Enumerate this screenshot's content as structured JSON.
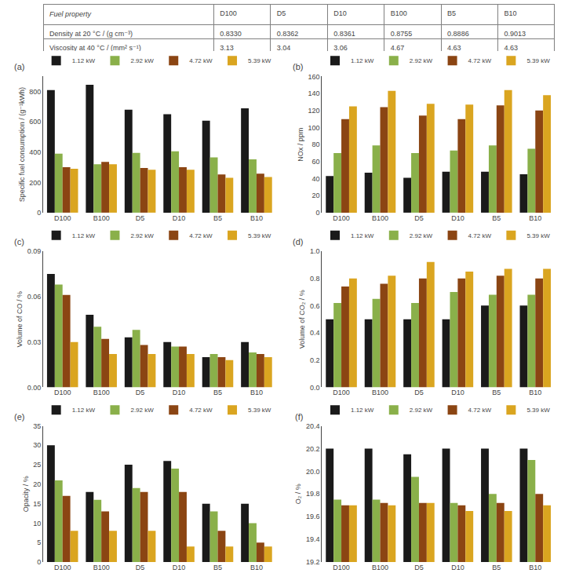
{
  "chart_data": [
    {
      "type": "table",
      "header": [
        "Fuel property",
        "D100",
        "D5",
        "D10",
        "B100",
        "B5",
        "B10"
      ],
      "rows": [
        [
          "Density at 20 °C / (g cm⁻³)",
          "0.8330",
          "0.8362",
          "0.8361",
          "0.8755",
          "0.8886",
          "0.9013"
        ],
        [
          "Viscosity at 40 °C / (mm² s⁻¹)",
          "3.13",
          "3.04",
          "3.06",
          "4.67",
          "4.63",
          "4.63"
        ]
      ]
    },
    {
      "type": "bar",
      "title": "(a)",
      "ylabel": "Specific fuel consumption / (g⁻¹kWh)",
      "categories": [
        "D100",
        "B100",
        "D5",
        "D10",
        "B5",
        "B10"
      ],
      "series": [
        {
          "name": "1.12 kW",
          "color": "#1a1a1a",
          "values": [
            810,
            845,
            680,
            650,
            608,
            690
          ]
        },
        {
          "name": "2.92 kW",
          "color": "#8ab04a",
          "values": [
            390,
            320,
            395,
            405,
            365,
            352
          ]
        },
        {
          "name": "4.72 kW",
          "color": "#8B4513",
          "values": [
            300,
            335,
            295,
            300,
            252,
            258
          ]
        },
        {
          "name": "5.39 kW",
          "color": "#DAA520",
          "values": [
            290,
            320,
            283,
            283,
            230,
            235
          ]
        }
      ],
      "ylim": [
        0,
        900
      ],
      "yticks": [
        0,
        200,
        400,
        600,
        800
      ],
      "grid": false,
      "legend": "upper right"
    },
    {
      "type": "bar",
      "title": "(b)",
      "ylabel": "NOx / ppm",
      "categories": [
        "D100",
        "B100",
        "D5",
        "D10",
        "B5",
        "B10"
      ],
      "series": [
        {
          "name": "1.12 kW",
          "color": "#1a1a1a",
          "values": [
            43,
            47,
            41,
            48,
            48,
            45
          ]
        },
        {
          "name": "2.92 kW",
          "color": "#8ab04a",
          "values": [
            70,
            79,
            70,
            73,
            79,
            75
          ]
        },
        {
          "name": "4.72 kW",
          "color": "#8B4513",
          "values": [
            110,
            124,
            114,
            110,
            126,
            120
          ]
        },
        {
          "name": "5.39 kW",
          "color": "#DAA520",
          "values": [
            125,
            143,
            128,
            127,
            144,
            138
          ]
        }
      ],
      "ylim": [
        0,
        160
      ],
      "yticks": [
        0,
        20,
        40,
        60,
        80,
        100,
        120,
        140,
        160
      ],
      "grid": false,
      "legend": "upper right"
    },
    {
      "type": "bar",
      "title": "(c)",
      "ylabel": "Volume of CO / %",
      "categories": [
        "D100",
        "B100",
        "D5",
        "D10",
        "B5",
        "B10"
      ],
      "series": [
        {
          "name": "1.12 kW",
          "color": "#1a1a1a",
          "values": [
            0.075,
            0.048,
            0.033,
            0.03,
            0.02,
            0.03
          ]
        },
        {
          "name": "2.92 kW",
          "color": "#8ab04a",
          "values": [
            0.068,
            0.04,
            0.038,
            0.027,
            0.022,
            0.023
          ]
        },
        {
          "name": "4.72 kW",
          "color": "#8B4513",
          "values": [
            0.061,
            0.032,
            0.028,
            0.027,
            0.02,
            0.022
          ]
        },
        {
          "name": "5.39 kW",
          "color": "#DAA520",
          "values": [
            0.03,
            0.022,
            0.022,
            0.022,
            0.018,
            0.02
          ]
        }
      ],
      "ylim": [
        0,
        0.09
      ],
      "yticks": [
        {
          "value": 0,
          "label": "0.00"
        },
        0.03,
        0.06,
        0.09
      ],
      "grid": false,
      "legend": "upper right"
    },
    {
      "type": "bar",
      "title": "(d)",
      "ylabel": "Volume of CO₂ / %",
      "categories": [
        "D100",
        "B100",
        "D5",
        "D10",
        "B5",
        "B10"
      ],
      "series": [
        {
          "name": "1.12 kW",
          "color": "#1a1a1a",
          "values": [
            0.5,
            0.5,
            0.5,
            0.5,
            0.6,
            0.6
          ]
        },
        {
          "name": "2.92 kW",
          "color": "#8ab04a",
          "values": [
            0.62,
            0.65,
            0.62,
            0.7,
            0.68,
            0.68
          ]
        },
        {
          "name": "4.72 kW",
          "color": "#8B4513",
          "values": [
            0.74,
            0.76,
            0.8,
            0.8,
            0.82,
            0.8
          ]
        },
        {
          "name": "5.39 kW",
          "color": "#DAA520",
          "values": [
            0.8,
            0.82,
            0.92,
            0.85,
            0.87,
            0.87
          ]
        }
      ],
      "ylim": [
        0,
        1
      ],
      "yticks": [
        {
          "value": 0,
          "label": "0.0"
        },
        0.2,
        0.4,
        0.6,
        0.8,
        {
          "value": 1.0,
          "label": "1.0"
        }
      ],
      "grid": false,
      "legend": "upper right"
    },
    {
      "type": "bar",
      "title": "(e)",
      "ylabel": "Opacity / %",
      "categories": [
        "D100",
        "B100",
        "D5",
        "D10",
        "B5",
        "B10"
      ],
      "series": [
        {
          "name": "1.12 kW",
          "color": "#1a1a1a",
          "values": [
            30,
            18,
            25,
            26,
            15,
            15
          ]
        },
        {
          "name": "2.92 kW",
          "color": "#8ab04a",
          "values": [
            21,
            16,
            19,
            24,
            13,
            10
          ]
        },
        {
          "name": "4.72 kW",
          "color": "#8B4513",
          "values": [
            17,
            13,
            18,
            18,
            8,
            5
          ]
        },
        {
          "name": "5.39 kW",
          "color": "#DAA520",
          "values": [
            8,
            8,
            8,
            4,
            4,
            4
          ]
        }
      ],
      "ylim": [
        0,
        35
      ],
      "yticks": [
        0,
        5,
        10,
        15,
        20,
        25,
        30,
        35
      ],
      "grid": false,
      "legend": "upper right"
    },
    {
      "type": "bar",
      "title": "(f)",
      "ylabel": "O₂ / %",
      "categories": [
        "D100",
        "B100",
        "D5",
        "D10",
        "B5",
        "B10"
      ],
      "series": [
        {
          "name": "1.12 kW",
          "color": "#1a1a1a",
          "values": [
            20.2,
            20.2,
            20.15,
            20.2,
            20.2,
            20.2
          ]
        },
        {
          "name": "2.92 kW",
          "color": "#8ab04a",
          "values": [
            19.75,
            19.75,
            19.95,
            19.72,
            19.8,
            20.1
          ]
        },
        {
          "name": "4.72 kW",
          "color": "#8B4513",
          "values": [
            19.7,
            19.72,
            19.72,
            19.7,
            19.72,
            19.8
          ]
        },
        {
          "name": "5.39 kW",
          "color": "#DAA520",
          "values": [
            19.7,
            19.7,
            19.72,
            19.65,
            19.65,
            19.7
          ]
        }
      ],
      "ylim": [
        19.2,
        20.4
      ],
      "yticks": [
        19.2,
        19.4,
        19.6,
        19.8,
        {
          "value": 20.0,
          "label": "20.0"
        },
        20.2,
        20.4
      ],
      "grid": false,
      "legend": "upper right"
    }
  ]
}
